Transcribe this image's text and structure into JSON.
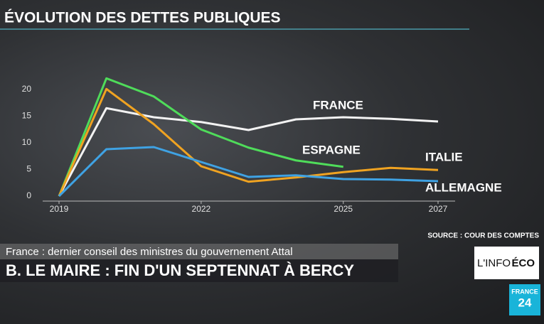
{
  "chart_data": {
    "type": "line",
    "title": "ÉVOLUTION DES DETTES PUBLIQUES",
    "source": "SOURCE : COUR DES COMPTES",
    "x": [
      2019,
      2020,
      2021,
      2022,
      2023,
      2024,
      2025,
      2026,
      2027
    ],
    "xlim": [
      2019,
      2027
    ],
    "xticks": [
      2019,
      2022,
      2025,
      2027
    ],
    "ylim": [
      0,
      20
    ],
    "yticks": [
      0,
      5,
      10,
      15,
      20
    ],
    "series": [
      {
        "name": "FRANCE",
        "color": "#f2f2f2",
        "values": [
          0,
          16.5,
          14.8,
          13.9,
          12.4,
          14.4,
          14.8,
          14.5,
          14.0
        ]
      },
      {
        "name": "ESPAGNE",
        "color": "#4fdc5a",
        "values": [
          0,
          22.1,
          18.7,
          12.5,
          9.1,
          6.7,
          5.5,
          null,
          null
        ]
      },
      {
        "name": "ITALIE",
        "color": "#f0a321",
        "values": [
          0,
          20.1,
          13.5,
          5.6,
          2.7,
          3.5,
          4.5,
          5.3,
          4.9
        ]
      },
      {
        "name": "ALLEMAGNE",
        "color": "#3fa2e3",
        "values": [
          0,
          8.8,
          9.2,
          6.4,
          3.6,
          3.9,
          3.2,
          3.1,
          2.8
        ]
      }
    ]
  },
  "broadcast": {
    "topic": "France : dernier conseil des ministres du gouvernement Attal",
    "headline": "B. LE MAIRE : FIN D'UN SEPTENNAT À BERCY",
    "program_logo": [
      "L'INFO",
      "ÉCO"
    ],
    "channel_logo": [
      "FRANCE",
      "24"
    ]
  }
}
